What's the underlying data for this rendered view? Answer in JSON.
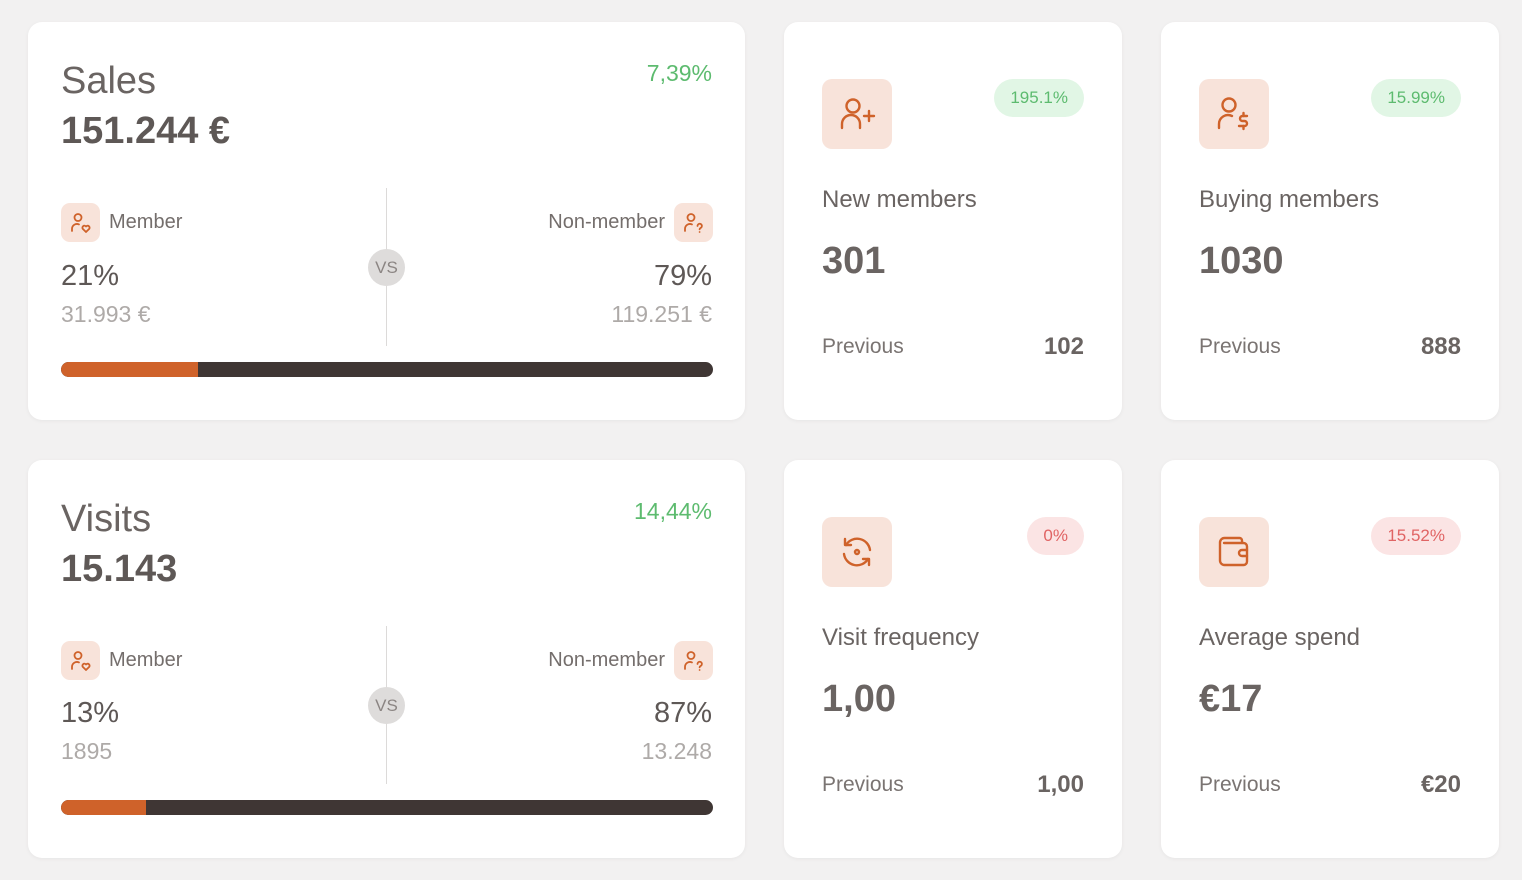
{
  "colors": {
    "accent": "#cf622a",
    "dark_bar": "#3f3634",
    "icon_bg": "#f8e3da",
    "positive": "#5dbb6f",
    "negative": "#e06464"
  },
  "sales": {
    "title": "Sales",
    "total": "151.244 €",
    "change": "7,39%",
    "vs": "VS",
    "member": {
      "label": "Member",
      "pct": "21%",
      "value": "31.993 €",
      "icon": "user-heart-icon"
    },
    "non_member": {
      "label": "Non-member",
      "pct": "79%",
      "value": "119.251 €",
      "icon": "user-question-icon"
    },
    "member_share": 21
  },
  "visits": {
    "title": "Visits",
    "total": "15.143",
    "change": "14,44%",
    "vs": "VS",
    "member": {
      "label": "Member",
      "pct": "13%",
      "value": "1895",
      "icon": "user-heart-icon"
    },
    "non_member": {
      "label": "Non-member",
      "pct": "87%",
      "value": "13.248",
      "icon": "user-question-icon"
    },
    "member_share": 13
  },
  "new_members": {
    "icon": "user-plus-icon",
    "badge": "195.1%",
    "badge_type": "positive",
    "label": "New members",
    "value": "301",
    "previous_label": "Previous",
    "previous_value": "102"
  },
  "buying_members": {
    "icon": "user-dollar-icon",
    "badge": "15.99%",
    "badge_type": "positive",
    "label": "Buying members",
    "value": "1030",
    "previous_label": "Previous",
    "previous_value": "888"
  },
  "visit_frequency": {
    "icon": "refresh-icon",
    "badge": "0%",
    "badge_type": "negative",
    "label": "Visit frequency",
    "value": "1,00",
    "previous_label": "Previous",
    "previous_value": "1,00"
  },
  "average_spend": {
    "icon": "wallet-icon",
    "badge": "15.52%",
    "badge_type": "negative",
    "label": "Average spend",
    "value": "€17",
    "previous_label": "Previous",
    "previous_value": "€20"
  }
}
